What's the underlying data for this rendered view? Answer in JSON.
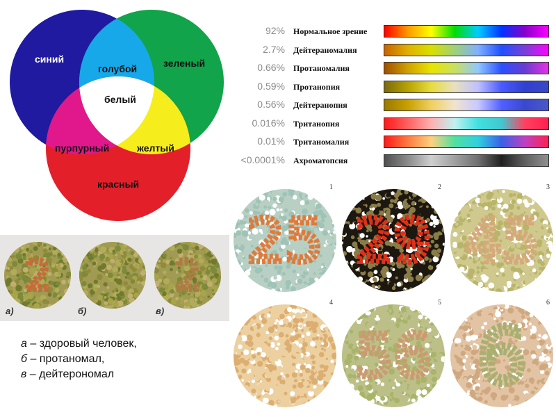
{
  "venn": {
    "labels": {
      "blue": "синий",
      "green": "зеленый",
      "cyan": "голубой",
      "white": "белый",
      "magenta": "пурпурный",
      "yellow": "желтый",
      "red": "красный"
    },
    "colors": {
      "blue": "#1f1aa0",
      "green": "#11a44a",
      "red": "#e3202a",
      "cyan": "#16a8e8",
      "magenta": "#e0188c",
      "yellow": "#f6ee1c",
      "white": "#ffffff"
    }
  },
  "cv_table": {
    "rows": [
      {
        "percent": "92%",
        "name": "Нормальное зрение",
        "stops": [
          "#ff0000",
          "#ff9900",
          "#ffff00",
          "#00dd00",
          "#00ccff",
          "#0033ff",
          "#8800cc",
          "#ff00ff"
        ]
      },
      {
        "percent": "2.7%",
        "name": "Дейтераномалия",
        "stops": [
          "#c86400",
          "#e0b000",
          "#d8e000",
          "#9fd07a",
          "#7fb0ff",
          "#2050ff",
          "#7a3fd8",
          "#ff00ff"
        ]
      },
      {
        "percent": "0.66%",
        "name": "Протаномалия",
        "stops": [
          "#a05000",
          "#d0a000",
          "#e8e400",
          "#c8e060",
          "#90c8ff",
          "#2a50ff",
          "#6a3cd0",
          "#e830e8"
        ]
      },
      {
        "percent": "0.59%",
        "name": "Протанопия",
        "stops": [
          "#7a6a10",
          "#b8a200",
          "#e8dc40",
          "#e8e0c0",
          "#c0c0ff",
          "#4a5aff",
          "#3040d0",
          "#3a48c8"
        ]
      },
      {
        "percent": "0.56%",
        "name": "Дейтеранопия",
        "stops": [
          "#9a7a00",
          "#c8a000",
          "#f0d060",
          "#f0e4d0",
          "#c8c8ff",
          "#5060ff",
          "#3a48d0",
          "#4a58c8"
        ]
      },
      {
        "percent": "0.016%",
        "name": "Тританопия",
        "stops": [
          "#ff1a1a",
          "#ff6060",
          "#ffb0b0",
          "#c0f0f0",
          "#40e0e0",
          "#40c8d0",
          "#ff4060",
          "#ff2050"
        ]
      },
      {
        "percent": "0.01%",
        "name": "Тританомалия",
        "stops": [
          "#ff1a1a",
          "#ff7a40",
          "#ffd080",
          "#50e0a0",
          "#30d0e0",
          "#3a60e8",
          "#c040c0",
          "#ff2050"
        ]
      },
      {
        "percent": "<0.0001%",
        "name": "Ахроматопсия",
        "stops": [
          "#505050",
          "#8a8a8a",
          "#cfcfcf",
          "#a0a0a0",
          "#707070",
          "#202020",
          "#606060",
          "#909090"
        ]
      }
    ]
  },
  "plates_left": {
    "captions": [
      "а)",
      "б)",
      "в)"
    ],
    "digit": "2"
  },
  "legend": {
    "lines": [
      {
        "letter": "а",
        "text": " – здоровый человек,"
      },
      {
        "letter": "б",
        "text": " – протаномал,"
      },
      {
        "letter": "в",
        "text": " – дейтерономал"
      }
    ]
  },
  "plates_right": {
    "plates": [
      {
        "num": "1",
        "digits": "25",
        "bg": "#9fc3b6",
        "fg": "#e07a3a",
        "base": "#b8d0c4"
      },
      {
        "num": "2",
        "digits": "29",
        "bg": "#8a7c48",
        "fg": "#e03018",
        "base": "#1c1810"
      },
      {
        "num": "3",
        "digits": "45",
        "bg": "#b8b46a",
        "fg": "#d6a87a",
        "base": "#cfc98e"
      },
      {
        "num": "4",
        "digits": "",
        "bg": "#dcae72",
        "fg": "#c6c46a",
        "base": "#ecd0a0"
      },
      {
        "num": "5",
        "digits": "56",
        "bg": "#a8b46a",
        "fg": "#cc9a70",
        "base": "#bcc088"
      },
      {
        "num": "6",
        "digits": "6",
        "bg": "#d0a880",
        "fg": "#a8b070",
        "base": "#e2c4a4"
      }
    ]
  }
}
